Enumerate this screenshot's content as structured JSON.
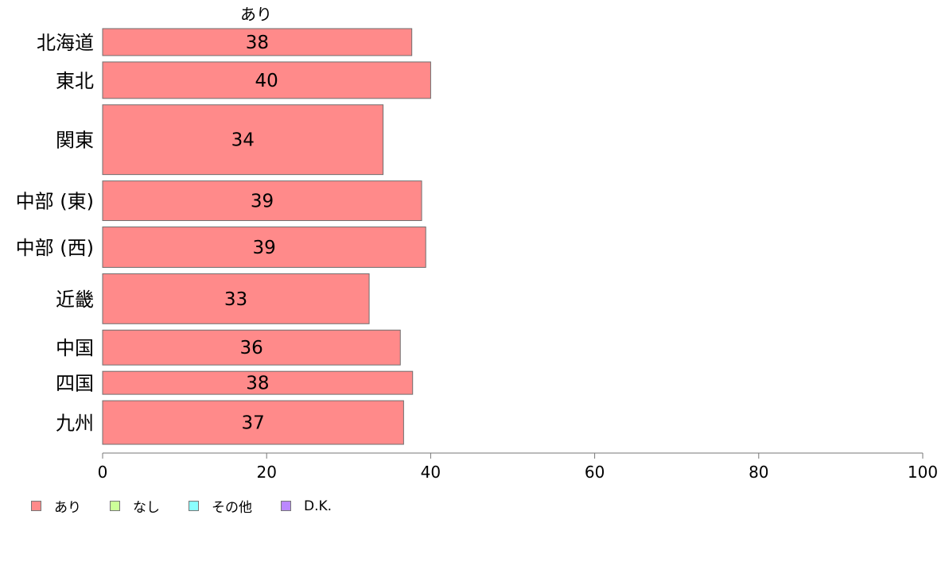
{
  "chart_data": {
    "type": "bar",
    "orientation": "horizontal",
    "stacked": true,
    "title": "あり",
    "categories": [
      "北海道",
      "東北",
      "関東",
      "中部 (東)",
      "中部 (西)",
      "近畿",
      "中国",
      "四国",
      "九州"
    ],
    "category_weights": [
      34,
      46,
      88,
      50,
      51,
      63,
      44,
      29,
      55
    ],
    "series": [
      {
        "name": "あり",
        "color": "#ff8a8a",
        "values": [
          37.7,
          40.0,
          34.2,
          38.9,
          39.4,
          32.5,
          36.3,
          37.8,
          36.7
        ],
        "labels": [
          "38",
          "40",
          "34",
          "39",
          "39",
          "33",
          "36",
          "38",
          "37"
        ]
      }
    ],
    "xlim": [
      0,
      100
    ],
    "xticks": [
      "0",
      "20",
      "40",
      "60",
      "80",
      "100"
    ],
    "xlabel": "",
    "ylabel": "",
    "grid": false,
    "legend_position": "bottom-left",
    "legend": [
      {
        "label": "あり",
        "color": "#ff8a8a"
      },
      {
        "label": "なし",
        "color": "#ccff99"
      },
      {
        "label": "その他",
        "color": "#8affff"
      },
      {
        "label": "D.K.",
        "color": "#bb88ff"
      }
    ]
  }
}
